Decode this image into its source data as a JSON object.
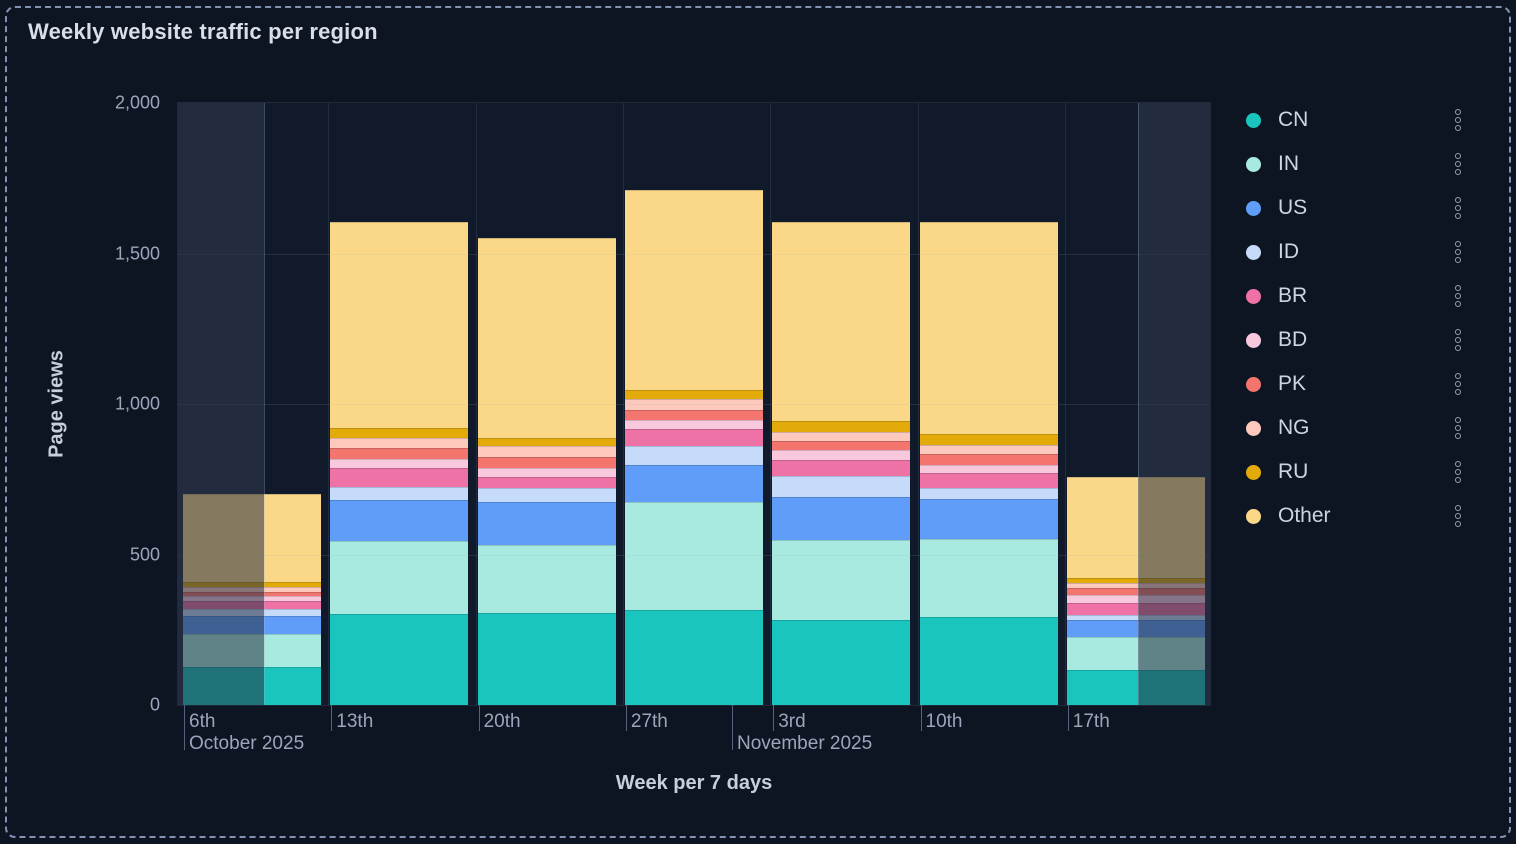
{
  "panel": {
    "title": "Weekly website traffic per region"
  },
  "chart_data": {
    "type": "bar",
    "stacked": true,
    "title": "Weekly website traffic per region",
    "xlabel": "Week per 7 days",
    "ylabel": "Page views",
    "ylim": [
      0,
      2000
    ],
    "yticks": [
      0,
      500,
      1000,
      1500,
      2000
    ],
    "ytick_labels": [
      "0",
      "500",
      "1,000",
      "1,500",
      "2,000"
    ],
    "categories": [
      "6th",
      "13th",
      "20th",
      "27th",
      "3rd",
      "10th",
      "17th"
    ],
    "month_markers": [
      {
        "label": "October 2025"
      },
      {
        "label": "November 2025"
      }
    ],
    "series": [
      {
        "name": "CN",
        "color": "#19C5BC",
        "values": [
          125,
          302,
          305,
          316,
          282,
          291,
          116
        ]
      },
      {
        "name": "IN",
        "color": "#A9EAE0",
        "values": [
          110,
          243,
          225,
          360,
          266,
          262,
          111
        ]
      },
      {
        "name": "US",
        "color": "#5F9DF8",
        "values": [
          60,
          136,
          143,
          122,
          144,
          131,
          55
        ]
      },
      {
        "name": "ID",
        "color": "#C6DAFA",
        "values": [
          25,
          44,
          47,
          64,
          69,
          36,
          18
        ]
      },
      {
        "name": "BR",
        "color": "#EE72A6",
        "values": [
          26,
          62,
          39,
          55,
          53,
          52,
          38
        ]
      },
      {
        "name": "BD",
        "color": "#FAC8DD",
        "values": [
          15,
          30,
          28,
          30,
          33,
          26,
          26
        ]
      },
      {
        "name": "PK",
        "color": "#F4756D",
        "values": [
          16,
          37,
          37,
          33,
          31,
          36,
          25
        ]
      },
      {
        "name": "NG",
        "color": "#FDC9BD",
        "values": [
          14,
          33,
          35,
          37,
          30,
          31,
          15
        ]
      },
      {
        "name": "RU",
        "color": "#E3AB0A",
        "values": [
          19,
          33,
          28,
          28,
          37,
          36,
          19
        ]
      },
      {
        "name": "Other",
        "color": "#FBD788",
        "values": [
          290,
          685,
          665,
          665,
          660,
          704,
          334
        ]
      }
    ],
    "totals": [
      700,
      1605,
      1552,
      1710,
      1605,
      1605,
      757
    ],
    "legend_position": "right",
    "grid": true,
    "out_of_range_edges_dimmed": true
  },
  "legend": {
    "menu_icon": "kebab-vertical-icon"
  }
}
